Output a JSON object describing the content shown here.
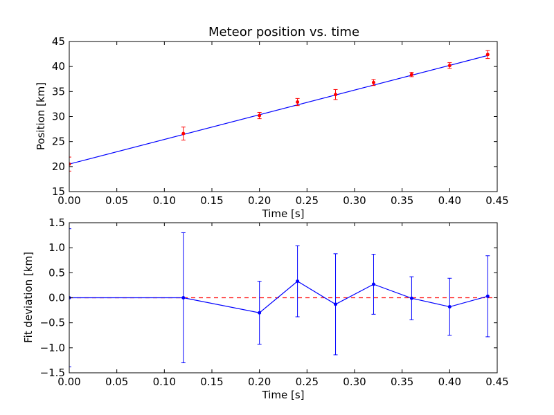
{
  "chart_data": [
    {
      "type": "scatter",
      "title": "Meteor position vs. time",
      "xlabel": "Time [s]",
      "ylabel": "Position [km]",
      "xlim": [
        0.0,
        0.45
      ],
      "ylim": [
        15,
        45
      ],
      "xticks": [
        "0.00",
        "0.05",
        "0.10",
        "0.15",
        "0.20",
        "0.25",
        "0.30",
        "0.35",
        "0.40",
        "0.45"
      ],
      "yticks": [
        "15",
        "20",
        "25",
        "30",
        "35",
        "40",
        "45"
      ],
      "grid": false,
      "fit_line": {
        "x": [
          0.0,
          0.44
        ],
        "y": [
          20.5,
          42.2
        ],
        "color": "#0000ff"
      },
      "points": {
        "x": [
          0.0,
          0.12,
          0.2,
          0.24,
          0.28,
          0.32,
          0.36,
          0.4,
          0.44
        ],
        "y": [
          20.5,
          26.6,
          30.2,
          32.9,
          34.4,
          36.8,
          38.4,
          40.2,
          42.4
        ],
        "yerr": [
          1.4,
          1.3,
          0.63,
          0.71,
          1.0,
          0.6,
          0.43,
          0.57,
          0.8
        ],
        "color": "#ff0000"
      }
    },
    {
      "type": "line",
      "title": "",
      "xlabel": "Time [s]",
      "ylabel": "Fit deviation [km]",
      "xlim": [
        0.0,
        0.45
      ],
      "ylim": [
        -1.5,
        1.5
      ],
      "xticks": [
        "0.00",
        "0.05",
        "0.10",
        "0.15",
        "0.20",
        "0.25",
        "0.30",
        "0.35",
        "0.40",
        "0.45"
      ],
      "yticks": [
        "−1.5",
        "−1.0",
        "−0.5",
        "0.0",
        "0.5",
        "1.0",
        "1.5"
      ],
      "grid": false,
      "zero_line": {
        "y": 0.0,
        "color": "#ff0000",
        "style": "dashed"
      },
      "series": {
        "x": [
          0.0,
          0.12,
          0.2,
          0.24,
          0.28,
          0.32,
          0.36,
          0.4,
          0.44
        ],
        "y": [
          0.0,
          0.0,
          -0.3,
          0.33,
          -0.13,
          0.27,
          -0.01,
          -0.18,
          0.03
        ],
        "yerr": [
          1.38,
          1.3,
          0.63,
          0.71,
          1.01,
          0.6,
          0.43,
          0.57,
          0.81
        ],
        "color": "#0000ff"
      }
    }
  ]
}
